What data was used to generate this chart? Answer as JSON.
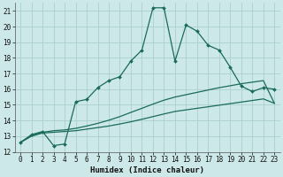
{
  "xlabel": "Humidex (Indice chaleur)",
  "background_color": "#cce8e8",
  "grid_color": "#aacfcf",
  "line_color": "#1a6b5a",
  "xlim": [
    -0.5,
    23.5
  ],
  "ylim": [
    12,
    21.5
  ],
  "yticks": [
    12,
    13,
    14,
    15,
    16,
    17,
    18,
    19,
    20,
    21
  ],
  "xticks": [
    0,
    1,
    2,
    3,
    4,
    5,
    6,
    7,
    8,
    9,
    10,
    11,
    12,
    13,
    14,
    15,
    16,
    17,
    18,
    19,
    20,
    21,
    22,
    23
  ],
  "line1_x": [
    0,
    1,
    2,
    3,
    4,
    5,
    6,
    7,
    8,
    9,
    10,
    11,
    12,
    13,
    14,
    15,
    16,
    17,
    18,
    19,
    20,
    21,
    22,
    23
  ],
  "line1_y": [
    12.6,
    13.0,
    13.2,
    13.25,
    13.3,
    13.35,
    13.45,
    13.55,
    13.65,
    13.78,
    13.92,
    14.08,
    14.25,
    14.42,
    14.58,
    14.68,
    14.78,
    14.88,
    14.98,
    15.08,
    15.18,
    15.28,
    15.38,
    15.1
  ],
  "line2_x": [
    0,
    1,
    2,
    3,
    4,
    5,
    6,
    7,
    8,
    9,
    10,
    11,
    12,
    13,
    14,
    15,
    16,
    17,
    18,
    19,
    20,
    21,
    22,
    23
  ],
  "line2_y": [
    12.6,
    13.05,
    13.25,
    13.35,
    13.4,
    13.5,
    13.65,
    13.82,
    14.02,
    14.25,
    14.52,
    14.78,
    15.05,
    15.3,
    15.5,
    15.65,
    15.8,
    15.95,
    16.1,
    16.22,
    16.35,
    16.45,
    16.55,
    15.1
  ],
  "line3_x": [
    0,
    1,
    2,
    3,
    4,
    5,
    6,
    7,
    8,
    9,
    10,
    11,
    12,
    13,
    14,
    15,
    16,
    17,
    18,
    19,
    20,
    21,
    22,
    23
  ],
  "line3_y": [
    12.6,
    13.1,
    13.3,
    12.4,
    12.5,
    15.2,
    15.35,
    16.1,
    16.55,
    16.8,
    17.8,
    18.5,
    21.2,
    21.2,
    17.8,
    20.1,
    19.7,
    18.8,
    18.5,
    17.4,
    16.2,
    15.85,
    16.1,
    16.0
  ]
}
